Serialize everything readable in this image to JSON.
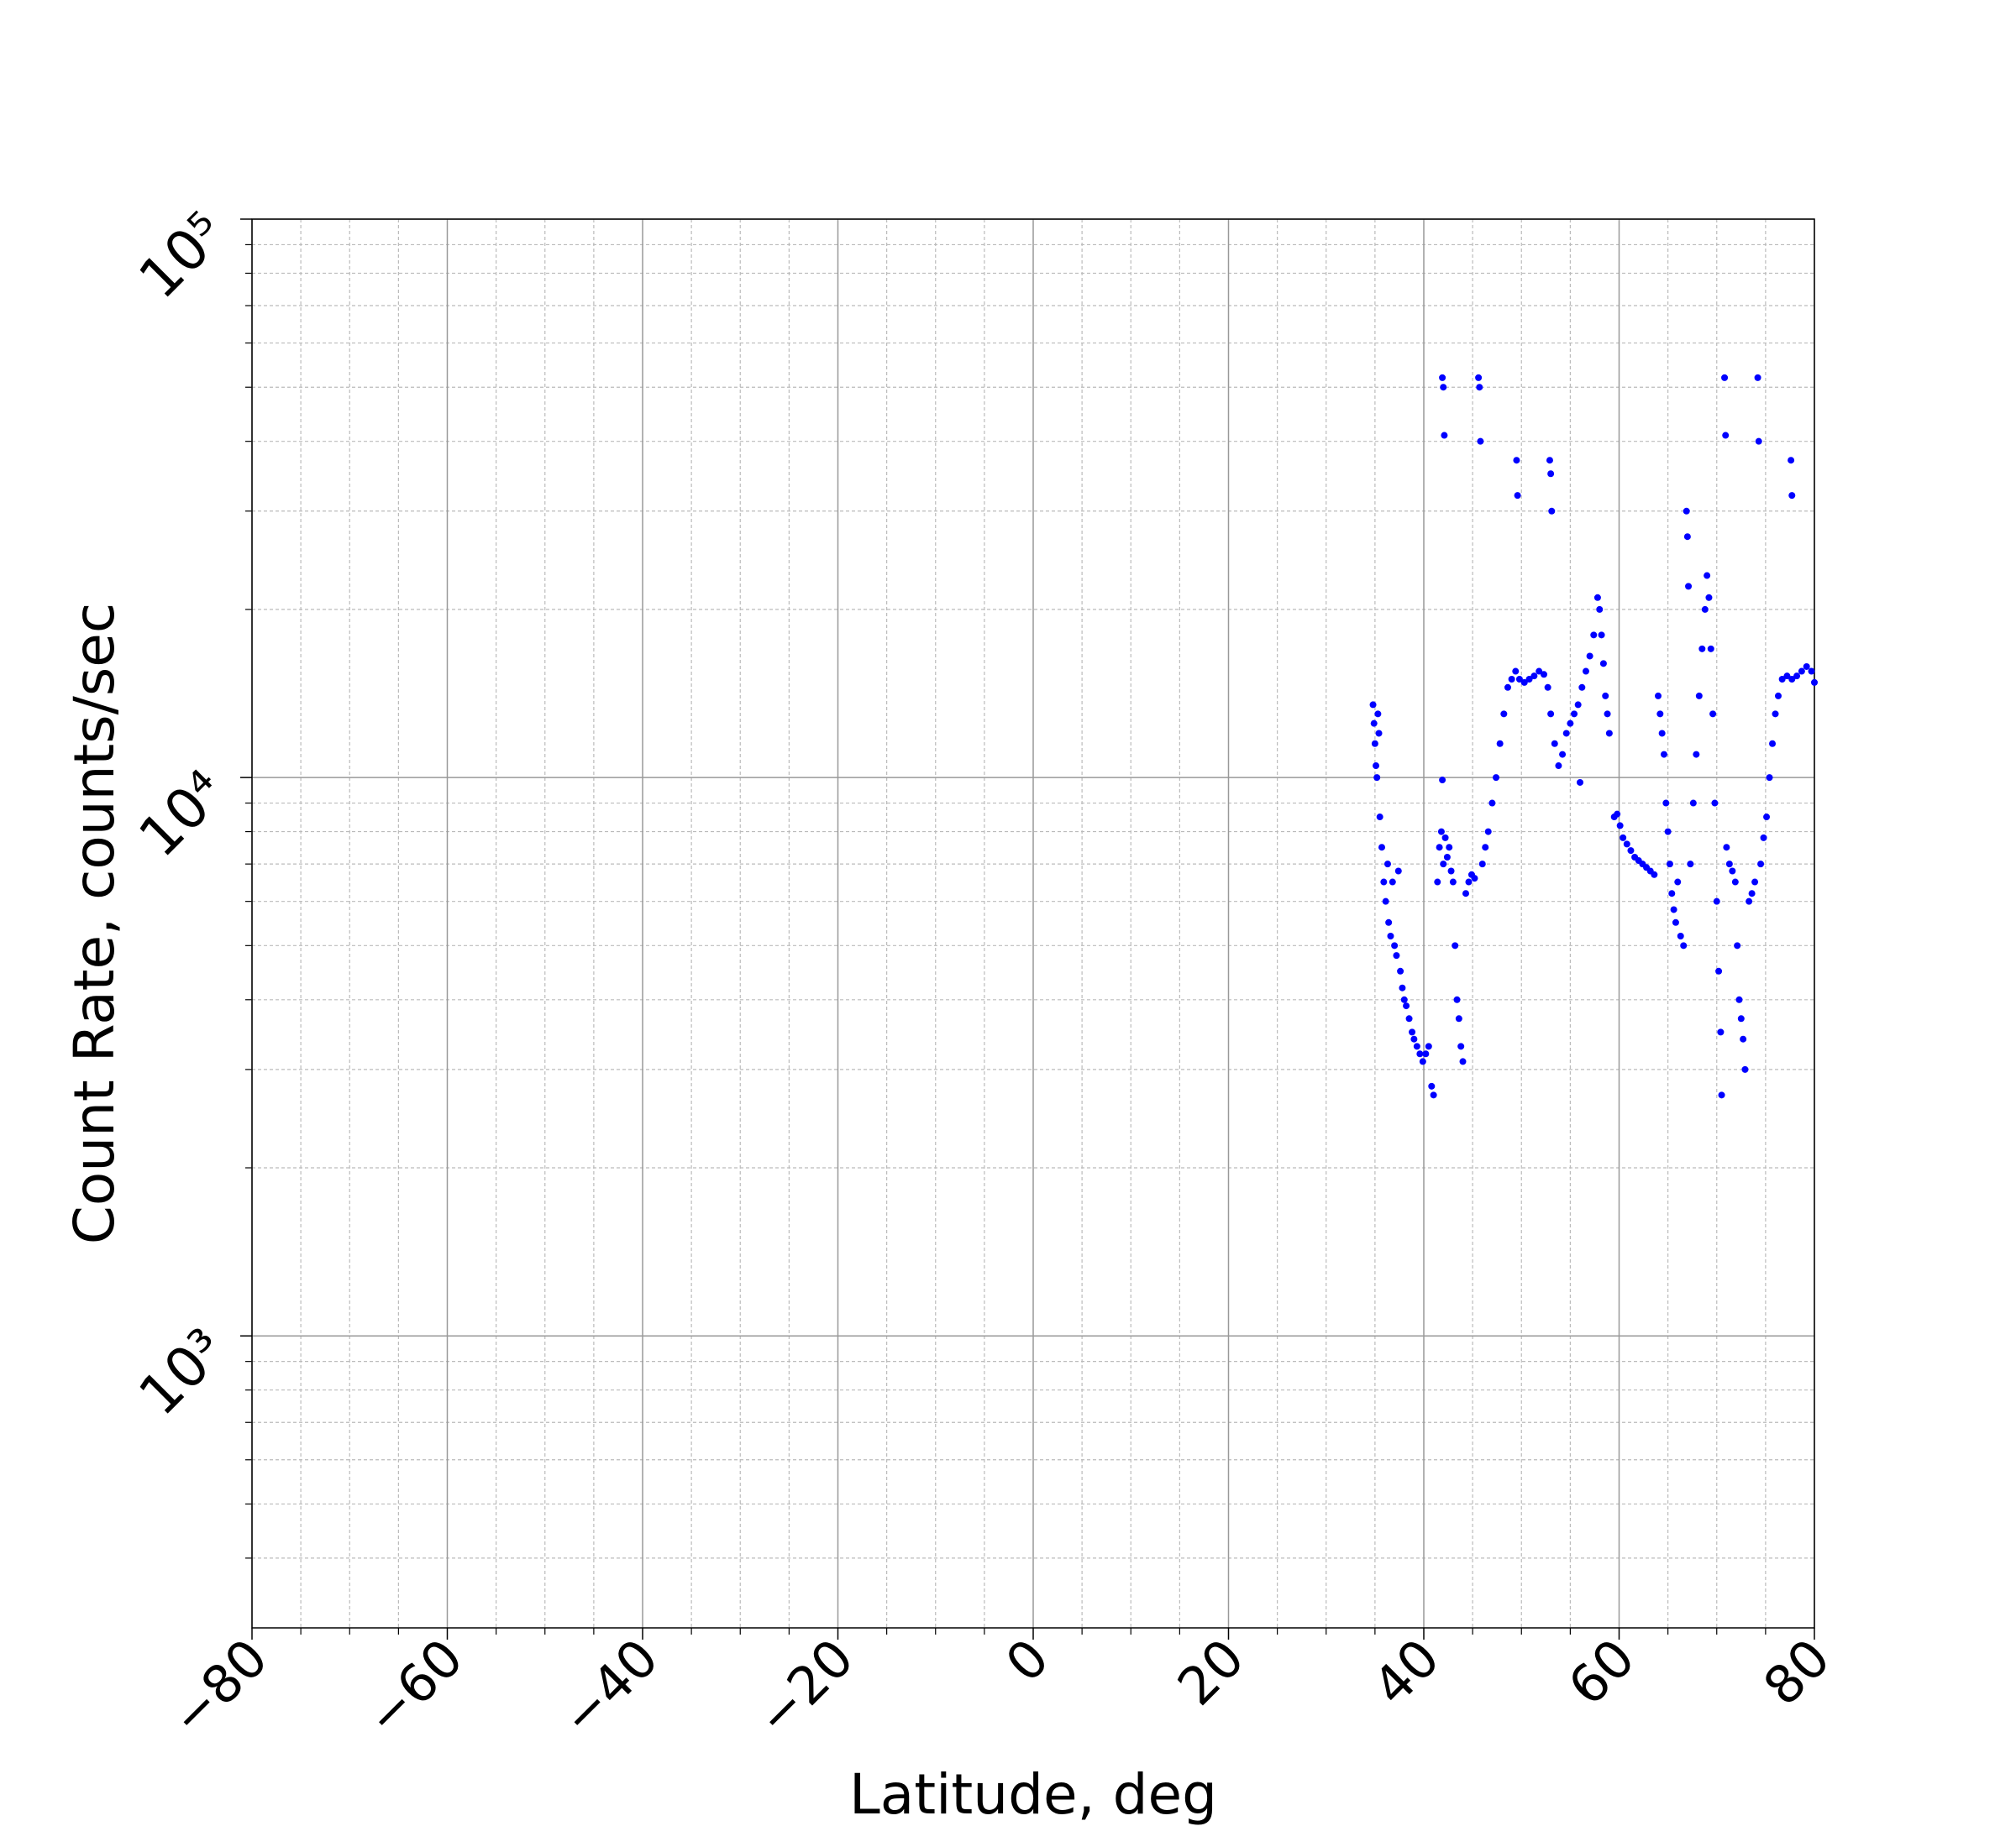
{
  "chart_data": {
    "type": "scatter",
    "xlabel": "Latitude, deg",
    "ylabel": "Count Rate, counts/sec",
    "color": "#0000ff",
    "log_y": true,
    "grid": true,
    "minor_grid": true,
    "xlim": [
      -80,
      80
    ],
    "xticks": [
      {
        "value": -80,
        "label": "−80"
      },
      {
        "value": -60,
        "label": "−60"
      },
      {
        "value": -40,
        "label": "−40"
      },
      {
        "value": -20,
        "label": "−20"
      },
      0,
      20,
      40,
      60,
      80
    ],
    "xminorticks": [
      -75,
      -70,
      -65,
      -55,
      -50,
      -45,
      -35,
      -30,
      -25,
      -15,
      -10,
      -5,
      5,
      10,
      15,
      25,
      30,
      35,
      45,
      50,
      55,
      65,
      70,
      75
    ],
    "ylim": [
      300,
      100000
    ],
    "yticks": [
      {
        "value": 1000,
        "label": "10³"
      },
      {
        "value": 10000,
        "label": "10⁴"
      },
      {
        "value": 100000,
        "label": "10⁵"
      }
    ],
    "yminorticks": [
      400,
      500,
      600,
      700,
      800,
      900,
      2000,
      3000,
      4000,
      5000,
      6000,
      7000,
      8000,
      9000,
      20000,
      30000,
      40000,
      50000,
      60000,
      70000,
      80000,
      90000
    ],
    "x": [
      34.8,
      34.9,
      35.0,
      35.1,
      35.2,
      35.3,
      35.4,
      35.5,
      35.7,
      35.9,
      36.1,
      36.3,
      36.4,
      36.6,
      36.8,
      37.0,
      37.2,
      37.4,
      37.6,
      37.8,
      38.0,
      38.2,
      38.5,
      38.8,
      39.0,
      39.3,
      39.6,
      39.9,
      40.2,
      40.5,
      40.8,
      41.0,
      41.4,
      41.6,
      41.8,
      41.9,
      42.0,
      42.2,
      42.4,
      42.6,
      42.8,
      43.0,
      43.2,
      43.4,
      43.6,
      43.8,
      44.0,
      44.3,
      44.6,
      44.9,
      45.2,
      41.9,
      42.0,
      42.1,
      45.6,
      45.7,
      45.8,
      46.0,
      46.3,
      46.6,
      47.0,
      47.4,
      47.8,
      48.2,
      48.6,
      49.0,
      49.4,
      49.8,
      50.3,
      50.8,
      51.3,
      51.8,
      52.3,
      52.7,
      53.0,
      53.4,
      53.8,
      54.2,
      54.6,
      55.0,
      55.4,
      55.8,
      56.0,
      56.2,
      56.6,
      57.0,
      57.4,
      57.8,
      58.0,
      58.2,
      58.4,
      58.6,
      58.8,
      59.0,
      49.5,
      49.6,
      52.9,
      53.0,
      53.1,
      59.5,
      59.8,
      60.1,
      60.4,
      60.8,
      61.2,
      61.6,
      62.0,
      62.4,
      62.8,
      63.2,
      63.6,
      64.0,
      64.2,
      64.4,
      64.6,
      64.8,
      65.0,
      65.2,
      65.4,
      65.6,
      65.8,
      66.0,
      66.3,
      66.6,
      66.9,
      67.0,
      67.1,
      67.3,
      67.6,
      67.9,
      68.2,
      68.5,
      68.8,
      69.0,
      69.2,
      69.4,
      69.6,
      69.8,
      70.0,
      70.2,
      70.4,
      70.5,
      70.8,
      70.9,
      71.0,
      71.3,
      71.6,
      71.9,
      72.1,
      72.3,
      72.5,
      72.7,
      72.9,
      73.3,
      73.6,
      73.9,
      74.2,
      74.3,
      74.5,
      74.8,
      75.1,
      75.4,
      75.7,
      76.0,
      76.3,
      76.7,
      77.2,
      77.7,
      78.2,
      78.7,
      79.2,
      79.7,
      80.0,
      77.6,
      77.7
    ],
    "values": [
      13500,
      12500,
      11500,
      10500,
      10000,
      13000,
      12000,
      8500,
      7500,
      6500,
      6000,
      7000,
      5500,
      5200,
      6500,
      5000,
      4800,
      6800,
      4500,
      4200,
      4000,
      3900,
      3700,
      3500,
      3400,
      3300,
      3200,
      3100,
      3200,
      3300,
      2800,
      2700,
      6500,
      7500,
      8000,
      9900,
      7000,
      7800,
      7200,
      7500,
      6800,
      6500,
      5000,
      4000,
      3700,
      3300,
      3100,
      6200,
      6500,
      6700,
      6600,
      52000,
      50000,
      41000,
      52000,
      50000,
      40000,
      7000,
      7500,
      8000,
      9000,
      10000,
      11500,
      13000,
      14500,
      15000,
      15500,
      15000,
      14800,
      15000,
      15200,
      15500,
      15300,
      14500,
      13000,
      11500,
      10500,
      11000,
      12000,
      12500,
      13000,
      13500,
      9800,
      14500,
      15500,
      16500,
      18000,
      21000,
      20000,
      18000,
      16000,
      14000,
      13000,
      12000,
      37000,
      32000,
      37000,
      35000,
      30000,
      8500,
      8600,
      8200,
      7800,
      7600,
      7400,
      7200,
      7100,
      7000,
      6900,
      6800,
      6700,
      14000,
      13000,
      12000,
      11000,
      9000,
      8000,
      7000,
      6200,
      5800,
      5500,
      6500,
      5200,
      5000,
      30000,
      27000,
      22000,
      7000,
      9000,
      11000,
      14000,
      17000,
      20000,
      23000,
      21000,
      17000,
      13000,
      9000,
      6000,
      4500,
      3500,
      2700,
      52000,
      41000,
      7500,
      7000,
      6800,
      6500,
      5000,
      4000,
      3700,
      3400,
      3000,
      6000,
      6200,
      6500,
      52000,
      40000,
      7000,
      7800,
      8500,
      10000,
      11500,
      13000,
      14000,
      15000,
      15200,
      15000,
      15200,
      15500,
      15800,
      15500,
      14800,
      37000,
      32000
    ]
  }
}
